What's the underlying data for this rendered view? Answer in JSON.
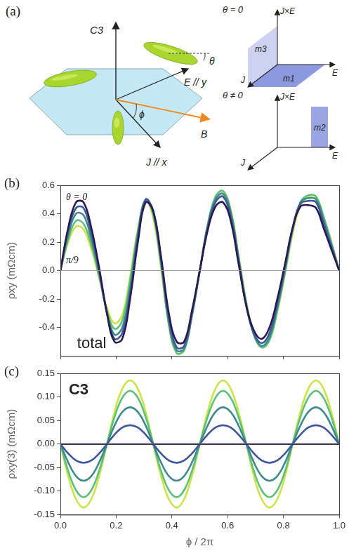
{
  "panel_a": {
    "label": "(a)",
    "axis_label": "C3",
    "field_labels": {
      "E": "E // y",
      "J": "J // x",
      "B": "B",
      "phi": "ϕ",
      "theta": "θ"
    },
    "frames": [
      {
        "title": "θ = 0",
        "axes": [
          "J",
          "E",
          "J×E"
        ],
        "planes": [
          "m3",
          "m1"
        ]
      },
      {
        "title": "θ ≠ 0",
        "axes": [
          "J",
          "E",
          "J×E"
        ],
        "planes": [
          "m2"
        ]
      }
    ]
  },
  "chart_data": [
    {
      "type": "line",
      "panel_label": "(b)",
      "ylabel": "ρxy (mΩcm)",
      "annotations": [
        "θ = 0",
        "π/9",
        "total"
      ],
      "xlim": [
        0,
        1
      ],
      "xticks": [
        {
          "value": 0,
          "label": "0.0"
        },
        0.2,
        0.4,
        0.6,
        0.8,
        {
          "value": 1,
          "label": "1.0"
        }
      ],
      "ylim": [
        -0.6,
        0.6
      ],
      "yticks": [
        -0.4,
        -0.2,
        {
          "value": 0,
          "label": "0.0"
        },
        0.2,
        0.4,
        0.6
      ],
      "grid": false,
      "tick_labels": "y",
      "x": [
        0,
        0.028,
        0.056,
        0.083,
        0.111,
        0.139,
        0.167,
        0.194,
        0.222,
        0.25,
        0.278,
        0.306,
        0.333,
        0.361,
        0.389,
        0.417,
        0.444,
        0.472,
        0.5,
        0.528,
        0.556,
        0.583,
        0.611,
        0.639,
        0.667,
        0.694,
        0.722,
        0.75,
        0.778,
        0.806,
        0.833,
        0.861,
        0.889,
        0.917,
        0.944,
        0.972,
        1
      ],
      "series": [
        {
          "color": "#2b1a4f",
          "values": [
            0,
            0.3,
            0.48,
            0.48,
            0.3,
            0.02,
            -0.3,
            -0.5,
            -0.48,
            -0.2,
            0.2,
            0.48,
            0.42,
            0.1,
            -0.3,
            -0.5,
            -0.5,
            -0.28,
            0,
            0.28,
            0.45,
            0.48,
            0.35,
            0.05,
            -0.25,
            -0.42,
            -0.48,
            -0.4,
            -0.2,
            0.05,
            0.3,
            0.45,
            0.46,
            0.44,
            0.3,
            0.15,
            0
          ]
        },
        {
          "color": "#3c5899",
          "values": [
            0,
            0.28,
            0.44,
            0.44,
            0.26,
            0,
            -0.3,
            -0.48,
            -0.44,
            -0.16,
            0.23,
            0.5,
            0.42,
            0.08,
            -0.33,
            -0.54,
            -0.53,
            -0.3,
            0,
            0.3,
            0.48,
            0.52,
            0.38,
            0.07,
            -0.25,
            -0.44,
            -0.51,
            -0.44,
            -0.23,
            0.03,
            0.3,
            0.47,
            0.49,
            0.48,
            0.33,
            0.17,
            0
          ]
        },
        {
          "color": "#3f8a8c",
          "values": [
            0,
            0.25,
            0.4,
            0.39,
            0.22,
            -0.02,
            -0.29,
            -0.45,
            -0.4,
            -0.12,
            0.26,
            0.5,
            0.41,
            0.06,
            -0.36,
            -0.56,
            -0.55,
            -0.31,
            0,
            0.31,
            0.5,
            0.54,
            0.41,
            0.09,
            -0.24,
            -0.45,
            -0.53,
            -0.47,
            -0.26,
            0.01,
            0.29,
            0.48,
            0.51,
            0.5,
            0.36,
            0.18,
            0
          ]
        },
        {
          "color": "#5cc17a",
          "values": [
            0,
            0.22,
            0.35,
            0.33,
            0.18,
            -0.04,
            -0.28,
            -0.41,
            -0.35,
            -0.07,
            0.28,
            0.5,
            0.39,
            0.04,
            -0.38,
            -0.58,
            -0.56,
            -0.32,
            0,
            0.32,
            0.52,
            0.56,
            0.42,
            0.1,
            -0.23,
            -0.45,
            -0.54,
            -0.49,
            -0.28,
            -0.01,
            0.28,
            0.48,
            0.53,
            0.52,
            0.38,
            0.2,
            0
          ]
        },
        {
          "color": "#cde348",
          "values": [
            0,
            0.2,
            0.31,
            0.29,
            0.15,
            -0.05,
            -0.26,
            -0.37,
            -0.31,
            -0.04,
            0.29,
            0.49,
            0.37,
            0.02,
            -0.38,
            -0.58,
            -0.56,
            -0.31,
            0,
            0.31,
            0.51,
            0.56,
            0.43,
            0.11,
            -0.22,
            -0.44,
            -0.54,
            -0.49,
            -0.29,
            -0.02,
            0.26,
            0.46,
            0.52,
            0.52,
            0.38,
            0.2,
            0
          ]
        }
      ]
    },
    {
      "type": "line",
      "panel_label": "(c)",
      "ylabel": "ρxy(3) (mΩcm)",
      "xlabel": "ϕ / 2π",
      "annotations": [
        "C3"
      ],
      "xlim": [
        0,
        1
      ],
      "xticks": [
        {
          "value": 0,
          "label": "0.0"
        },
        0.2,
        0.4,
        0.6,
        0.8,
        {
          "value": 1,
          "label": "1.0"
        }
      ],
      "ylim": [
        -0.15,
        0.15
      ],
      "yticks": [
        -0.15,
        {
          "value": -0.1,
          "label": "-0.10"
        },
        -0.05,
        {
          "value": 0,
          "label": "0.00"
        },
        0.05,
        {
          "value": 0.1,
          "label": "0.10"
        },
        0.15
      ],
      "grid": false,
      "x": [
        0,
        0.028,
        0.056,
        0.083,
        0.111,
        0.139,
        0.167,
        0.194,
        0.222,
        0.25,
        0.278,
        0.306,
        0.333,
        0.361,
        0.389,
        0.417,
        0.444,
        0.472,
        0.5,
        0.528,
        0.556,
        0.583,
        0.611,
        0.639,
        0.667,
        0.694,
        0.722,
        0.75,
        0.778,
        0.806,
        0.833,
        0.861,
        0.889,
        0.917,
        0.944,
        0.972,
        1
      ],
      "series": [
        {
          "color": "#2b1a4f",
          "values": [
            0,
            0,
            0,
            0,
            0,
            0,
            0,
            0,
            0,
            0,
            0,
            0,
            0,
            0,
            0,
            0,
            0,
            0,
            0,
            0,
            0,
            0,
            0,
            0,
            0,
            0,
            0,
            0,
            0,
            0,
            0,
            0,
            0,
            0,
            0,
            0,
            0
          ]
        },
        {
          "color": "#3c5899",
          "values": [
            0,
            -0.02,
            -0.035,
            -0.04,
            -0.035,
            -0.02,
            0,
            0.02,
            0.035,
            0.04,
            0.035,
            0.02,
            0,
            -0.02,
            -0.035,
            -0.04,
            -0.035,
            -0.02,
            0,
            0.02,
            0.035,
            0.04,
            0.035,
            0.02,
            0,
            -0.02,
            -0.035,
            -0.04,
            -0.035,
            -0.02,
            0,
            0.02,
            0.035,
            0.04,
            0.035,
            0.02,
            0
          ]
        },
        {
          "color": "#3f8a8c",
          "values": [
            0,
            -0.039,
            -0.068,
            -0.078,
            -0.068,
            -0.039,
            0,
            0.039,
            0.068,
            0.078,
            0.068,
            0.039,
            0,
            -0.039,
            -0.068,
            -0.078,
            -0.068,
            -0.039,
            0,
            0.039,
            0.068,
            0.078,
            0.068,
            0.039,
            0,
            -0.039,
            -0.068,
            -0.078,
            -0.068,
            -0.039,
            0,
            0.039,
            0.068,
            0.078,
            0.068,
            0.039,
            0
          ]
        },
        {
          "color": "#5cc17a",
          "values": [
            0,
            -0.057,
            -0.098,
            -0.113,
            -0.098,
            -0.057,
            0,
            0.057,
            0.098,
            0.113,
            0.098,
            0.057,
            0,
            -0.057,
            -0.098,
            -0.113,
            -0.098,
            -0.057,
            0,
            0.057,
            0.098,
            0.113,
            0.098,
            0.057,
            0,
            -0.057,
            -0.098,
            -0.113,
            -0.098,
            -0.057,
            0,
            0.057,
            0.098,
            0.113,
            0.098,
            0.057,
            0
          ]
        },
        {
          "color": "#cde348",
          "values": [
            0,
            -0.068,
            -0.117,
            -0.135,
            -0.117,
            -0.068,
            0,
            0.068,
            0.117,
            0.135,
            0.117,
            0.068,
            0,
            -0.068,
            -0.117,
            -0.135,
            -0.117,
            -0.068,
            0,
            0.068,
            0.117,
            0.135,
            0.117,
            0.068,
            0,
            -0.068,
            -0.117,
            -0.135,
            -0.117,
            -0.068,
            0,
            0.068,
            0.117,
            0.135,
            0.117,
            0.068,
            0
          ]
        }
      ]
    }
  ]
}
